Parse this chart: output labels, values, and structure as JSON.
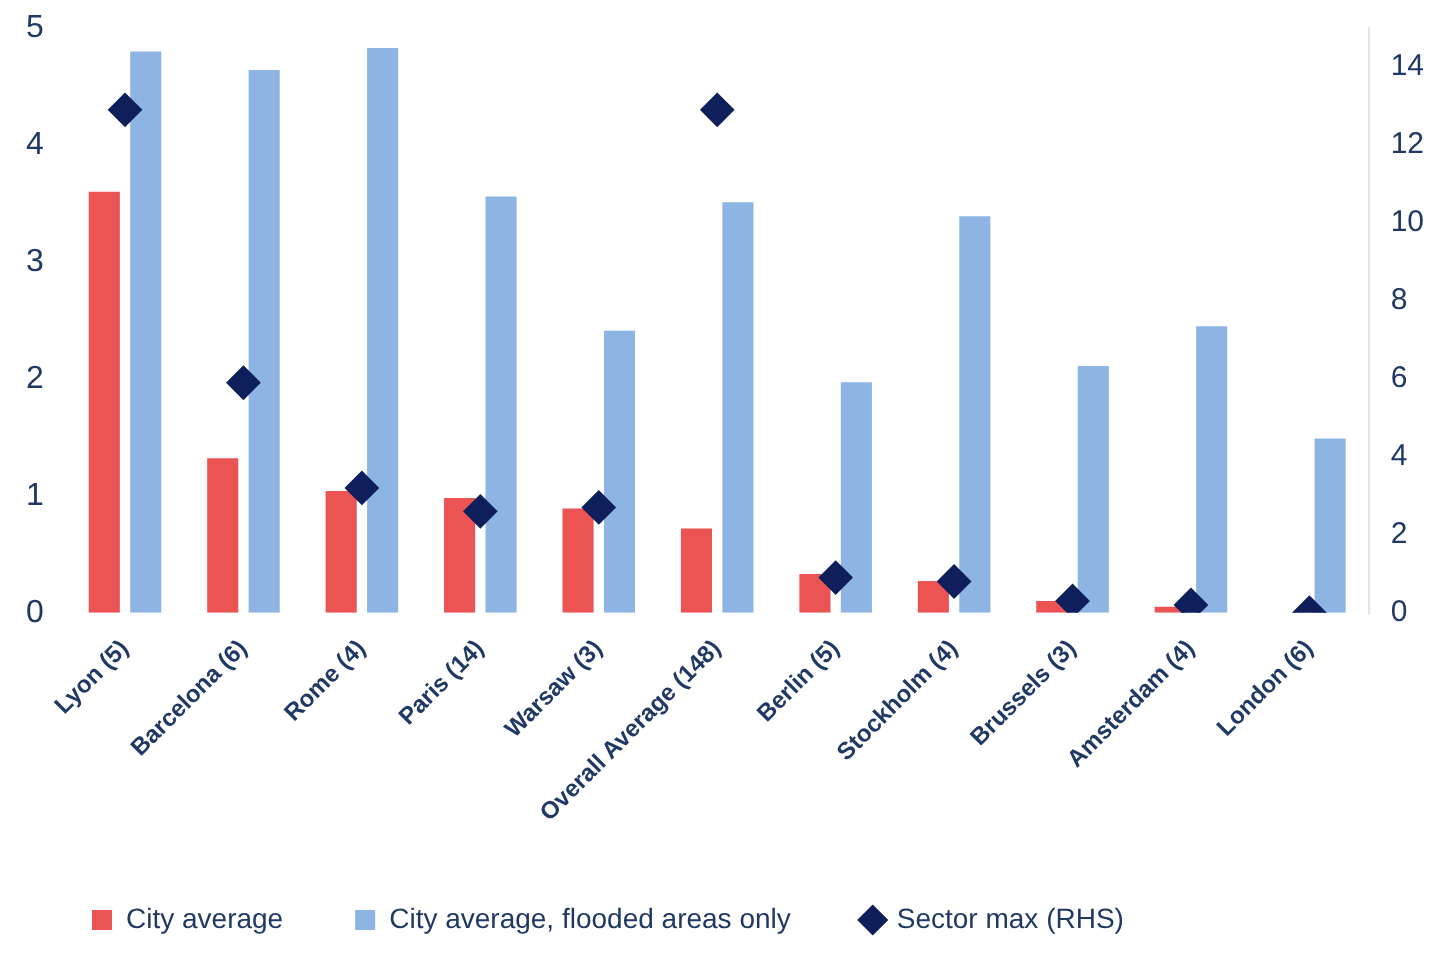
{
  "chart_data": {
    "type": "bar",
    "categories": [
      "Lyon (5)",
      "Barcelona (6)",
      "Rome (4)",
      "Paris (14)",
      "Warsaw (3)",
      "Overall Average (148)",
      "Berlin (5)",
      "Stockholm (4)",
      "Brussels (3)",
      "Amsterdam (4)",
      "London (6)"
    ],
    "series": [
      {
        "name": "City average",
        "color": "#ec5454",
        "values": [
          3.6,
          1.32,
          1.04,
          0.98,
          0.89,
          0.72,
          0.33,
          0.27,
          0.1,
          0.05,
          0
        ]
      },
      {
        "name": "City average, flooded areas only",
        "color": "#8db4e2",
        "values": [
          4.8,
          4.64,
          4.83,
          3.56,
          2.41,
          3.51,
          1.97,
          3.39,
          2.11,
          2.45,
          1.49
        ]
      },
      {
        "name": "Sector max (RHS)",
        "type": "scatter",
        "axis": "y2",
        "color": "#0f1f5c",
        "values": [
          12.9,
          5.9,
          3.2,
          2.6,
          2.7,
          12.9,
          0.9,
          0.8,
          0.3,
          0.2,
          0
        ]
      }
    ],
    "ylim": [
      0,
      5
    ],
    "yticks": [
      0,
      1,
      2,
      3,
      4,
      5
    ],
    "y2lim": [
      0,
      15
    ],
    "y2ticks": [
      0,
      2,
      4,
      6,
      8,
      10,
      12,
      14
    ],
    "marker": "diamond",
    "grid": false,
    "legend": "bottom"
  }
}
